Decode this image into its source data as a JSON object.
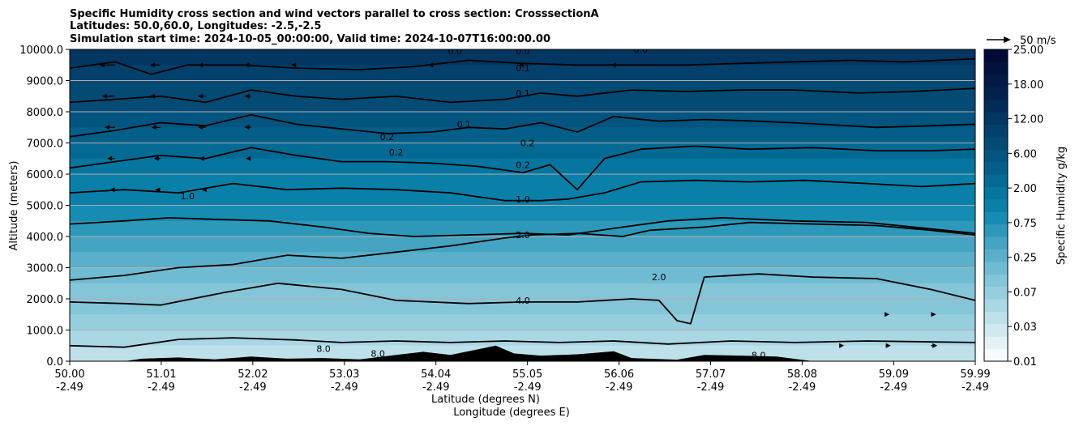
{
  "chart_data": {
    "type": "contourf",
    "title_lines": [
      "Specific Humidity cross section and wind vectors parallel to cross section: CrosssectionA",
      "Latitudes: 50.0,60.0, Longitudes: -2.5,-2.5",
      "Simulation start time: 2024-10-05_00:00:00, Valid time: 2024-10-07T16:00:00.00"
    ],
    "ylabel": "Altitude (meters)",
    "xlabel_lines": [
      "Latitude (degrees N)",
      "Longitude (degrees E)"
    ],
    "ylim": [
      0,
      10000
    ],
    "y_ticks": [
      0,
      1000,
      2000,
      3000,
      4000,
      5000,
      6000,
      7000,
      8000,
      9000,
      10000
    ],
    "y_tick_labels": [
      "0.0",
      "1000.0",
      "2000.0",
      "3000.0",
      "4000.0",
      "5000.0",
      "6000.0",
      "7000.0",
      "8000.0",
      "9000.0",
      "10000.0"
    ],
    "xlim": [
      50.0,
      59.99
    ],
    "x_ticks": [
      50.0,
      51.01,
      52.02,
      53.03,
      54.04,
      55.05,
      56.06,
      57.07,
      58.08,
      59.09,
      59.99
    ],
    "x_tick_labels": [
      [
        "50.00",
        "-2.49"
      ],
      [
        "51.01",
        "-2.49"
      ],
      [
        "52.02",
        "-2.49"
      ],
      [
        "53.03",
        "-2.49"
      ],
      [
        "54.04",
        "-2.49"
      ],
      [
        "55.05",
        "-2.49"
      ],
      [
        "56.06",
        "-2.49"
      ],
      [
        "57.07",
        "-2.49"
      ],
      [
        "58.08",
        "-2.49"
      ],
      [
        "59.09",
        "-2.49"
      ],
      [
        "59.99",
        "-2.49"
      ]
    ],
    "grid": "horizontal",
    "colorbar": {
      "label": "Specific Humidity g/kg",
      "tick_labels": [
        "0.01",
        "0.03",
        "0.07",
        "0.25",
        "0.75",
        "2.00",
        "6.00",
        "12.00",
        "18.00",
        "25.00"
      ],
      "colors": [
        "#f7fbfd",
        "#e4f2f6",
        "#d0e9f0",
        "#bde0ea",
        "#aad7e4",
        "#97cede",
        "#84c5d8",
        "#6fbbd2",
        "#5ab0ca",
        "#44a4c2",
        "#2d98ba",
        "#168cb2",
        "#0a80a9",
        "#06759f",
        "#046a94",
        "#035f89",
        "#03547f",
        "#034a75",
        "#03406b",
        "#033661",
        "#022c57",
        "#02224d",
        "#021a45",
        "#02123d",
        "#020b36"
      ]
    },
    "contour_levels": [
      "0.0",
      "0.1",
      "0.2",
      "1.0",
      "2.0",
      "4.0",
      "8.0"
    ],
    "contours": [
      {
        "level": "8.0",
        "points": [
          [
            50.0,
            500
          ],
          [
            50.6,
            450
          ],
          [
            51.2,
            700
          ],
          [
            51.8,
            750
          ],
          [
            52.5,
            680
          ],
          [
            53.0,
            600
          ],
          [
            53.6,
            650
          ],
          [
            54.2,
            600
          ],
          [
            54.8,
            650
          ],
          [
            55.4,
            600
          ],
          [
            56.0,
            650
          ],
          [
            56.6,
            550
          ],
          [
            57.3,
            650
          ],
          [
            58.0,
            600
          ],
          [
            58.8,
            650
          ],
          [
            59.99,
            600
          ]
        ]
      },
      {
        "level": "4.0",
        "points": [
          [
            50.0,
            1900
          ],
          [
            50.6,
            1850
          ],
          [
            51.0,
            1800
          ],
          [
            51.7,
            2200
          ],
          [
            52.3,
            2500
          ],
          [
            53.0,
            2300
          ],
          [
            53.6,
            1950
          ],
          [
            54.4,
            1850
          ],
          [
            55.0,
            1900
          ],
          [
            55.6,
            1900
          ],
          [
            56.2,
            2000
          ],
          [
            56.5,
            1950
          ],
          [
            56.7,
            1300
          ],
          [
            56.85,
            1200
          ],
          [
            57.0,
            2700
          ],
          [
            57.6,
            2800
          ],
          [
            58.2,
            2700
          ],
          [
            58.9,
            2650
          ],
          [
            59.5,
            2300
          ],
          [
            59.99,
            1950
          ]
        ]
      },
      {
        "level": "2.0",
        "points": [
          [
            50.0,
            2600
          ],
          [
            50.6,
            2750
          ],
          [
            51.2,
            3000
          ],
          [
            51.8,
            3100
          ],
          [
            52.4,
            3400
          ],
          [
            53.0,
            3300
          ],
          [
            53.6,
            3500
          ],
          [
            54.2,
            3700
          ],
          [
            54.8,
            3950
          ],
          [
            55.1,
            4050
          ],
          [
            55.6,
            4100
          ],
          [
            56.1,
            4000
          ],
          [
            56.4,
            4200
          ],
          [
            57.0,
            4300
          ],
          [
            57.5,
            4450
          ],
          [
            58.2,
            4400
          ],
          [
            58.9,
            4350
          ],
          [
            59.5,
            4200
          ],
          [
            59.99,
            4050
          ]
        ]
      },
      {
        "level": "2.0b",
        "points": [
          [
            50.0,
            4400
          ],
          [
            50.6,
            4500
          ],
          [
            51.1,
            4600
          ],
          [
            51.6,
            4550
          ],
          [
            52.2,
            4500
          ],
          [
            52.8,
            4300
          ],
          [
            53.3,
            4100
          ],
          [
            53.8,
            4000
          ],
          [
            54.4,
            4050
          ],
          [
            55.0,
            4100
          ],
          [
            55.5,
            4050
          ],
          [
            56.1,
            4300
          ],
          [
            56.6,
            4500
          ],
          [
            57.2,
            4600
          ],
          [
            58.0,
            4500
          ],
          [
            58.8,
            4450
          ],
          [
            59.99,
            4100
          ]
        ]
      },
      {
        "level": "1.0",
        "points": [
          [
            50.0,
            5400
          ],
          [
            50.6,
            5500
          ],
          [
            51.2,
            5400
          ],
          [
            51.8,
            5700
          ],
          [
            52.4,
            5500
          ],
          [
            53.0,
            5550
          ],
          [
            53.6,
            5500
          ],
          [
            54.2,
            5400
          ],
          [
            54.8,
            5150
          ],
          [
            55.2,
            5150
          ],
          [
            55.5,
            5200
          ],
          [
            55.9,
            5400
          ],
          [
            56.3,
            5750
          ],
          [
            56.9,
            5800
          ],
          [
            57.5,
            5750
          ],
          [
            58.1,
            5800
          ],
          [
            58.8,
            5700
          ],
          [
            59.4,
            5600
          ],
          [
            59.99,
            5700
          ]
        ]
      },
      {
        "level": "0.2",
        "points": [
          [
            50.0,
            6200
          ],
          [
            50.5,
            6400
          ],
          [
            51.0,
            6600
          ],
          [
            51.5,
            6500
          ],
          [
            52.0,
            6850
          ],
          [
            52.5,
            6600
          ],
          [
            53.0,
            6400
          ],
          [
            53.5,
            6400
          ],
          [
            54.0,
            6350
          ],
          [
            54.5,
            6250
          ],
          [
            55.0,
            6050
          ],
          [
            55.3,
            6300
          ],
          [
            55.6,
            5500
          ],
          [
            55.9,
            6500
          ],
          [
            56.3,
            6800
          ],
          [
            56.9,
            6900
          ],
          [
            57.5,
            6800
          ],
          [
            58.2,
            6850
          ],
          [
            58.9,
            6750
          ],
          [
            59.5,
            6750
          ],
          [
            59.99,
            6800
          ]
        ]
      },
      {
        "level": "0.2b",
        "points": [
          [
            50.0,
            7200
          ],
          [
            50.5,
            7400
          ],
          [
            51.0,
            7650
          ],
          [
            51.5,
            7550
          ],
          [
            52.0,
            7900
          ],
          [
            52.5,
            7600
          ],
          [
            53.0,
            7450
          ],
          [
            53.5,
            7300
          ],
          [
            54.0,
            7350
          ],
          [
            54.4,
            7500
          ],
          [
            54.8,
            7450
          ],
          [
            55.2,
            7650
          ],
          [
            55.6,
            7350
          ],
          [
            56.0,
            7850
          ],
          [
            56.5,
            7700
          ],
          [
            57.0,
            7750
          ],
          [
            57.6,
            7700
          ],
          [
            58.3,
            7600
          ],
          [
            58.9,
            7500
          ],
          [
            59.5,
            7550
          ],
          [
            59.99,
            7600
          ]
        ]
      },
      {
        "level": "0.1",
        "points": [
          [
            50.0,
            8300
          ],
          [
            50.5,
            8400
          ],
          [
            51.0,
            8500
          ],
          [
            51.5,
            8300
          ],
          [
            52.0,
            8700
          ],
          [
            52.5,
            8500
          ],
          [
            53.0,
            8400
          ],
          [
            53.6,
            8500
          ],
          [
            54.2,
            8300
          ],
          [
            54.8,
            8400
          ],
          [
            55.2,
            8600
          ],
          [
            55.6,
            8500
          ],
          [
            56.2,
            8700
          ],
          [
            56.8,
            8650
          ],
          [
            57.4,
            8700
          ],
          [
            58.0,
            8700
          ],
          [
            58.7,
            8600
          ],
          [
            59.3,
            8650
          ],
          [
            59.99,
            8750
          ]
        ]
      },
      {
        "level": "0.0",
        "points": [
          [
            50.0,
            9400
          ],
          [
            50.5,
            9600
          ],
          [
            50.9,
            9200
          ],
          [
            51.3,
            9500
          ],
          [
            51.9,
            9500
          ],
          [
            52.5,
            9400
          ],
          [
            53.2,
            9350
          ],
          [
            53.8,
            9450
          ],
          [
            54.4,
            9650
          ],
          [
            55.0,
            9550
          ],
          [
            55.6,
            9500
          ],
          [
            56.2,
            9500
          ],
          [
            56.8,
            9500
          ],
          [
            57.4,
            9550
          ],
          [
            58.0,
            9600
          ],
          [
            58.6,
            9650
          ],
          [
            59.2,
            9600
          ],
          [
            59.99,
            9700
          ]
        ]
      }
    ],
    "contour_labels": [
      {
        "text": "0.0",
        "x": 54.25,
        "y": 9950
      },
      {
        "text": "0.0",
        "x": 55.0,
        "y": 9950
      },
      {
        "text": "0.0",
        "x": 56.3,
        "y": 10000
      },
      {
        "text": "0.1",
        "x": 55.0,
        "y": 9400
      },
      {
        "text": "0.1",
        "x": 55.0,
        "y": 8600
      },
      {
        "text": "0.1",
        "x": 54.35,
        "y": 7600
      },
      {
        "text": "0.2",
        "x": 53.5,
        "y": 7200
      },
      {
        "text": "0.2",
        "x": 53.6,
        "y": 6700
      },
      {
        "text": "0.2",
        "x": 55.0,
        "y": 6300
      },
      {
        "text": "0.2",
        "x": 55.05,
        "y": 7000
      },
      {
        "text": "1.0",
        "x": 51.3,
        "y": 5300
      },
      {
        "text": "1.0",
        "x": 55.0,
        "y": 5200
      },
      {
        "text": "2.0",
        "x": 55.0,
        "y": 4050
      },
      {
        "text": "4.0",
        "x": 55.0,
        "y": 1950
      },
      {
        "text": "2.0",
        "x": 56.5,
        "y": 2700
      },
      {
        "text": "8.0",
        "x": 52.8,
        "y": 400
      },
      {
        "text": "8.0",
        "x": 53.4,
        "y": 250
      },
      {
        "text": "8.0",
        "x": 57.6,
        "y": 200
      }
    ],
    "terrain": [
      [
        50.0,
        0
      ],
      [
        50.6,
        0
      ],
      [
        50.8,
        80
      ],
      [
        51.2,
        120
      ],
      [
        51.6,
        60
      ],
      [
        52.0,
        150
      ],
      [
        52.4,
        80
      ],
      [
        52.8,
        100
      ],
      [
        53.2,
        60
      ],
      [
        53.6,
        200
      ],
      [
        53.9,
        300
      ],
      [
        54.2,
        200
      ],
      [
        54.5,
        380
      ],
      [
        54.7,
        500
      ],
      [
        54.9,
        250
      ],
      [
        55.2,
        180
      ],
      [
        55.6,
        220
      ],
      [
        56.0,
        320
      ],
      [
        56.2,
        100
      ],
      [
        56.7,
        50
      ],
      [
        57.0,
        200
      ],
      [
        57.4,
        180
      ],
      [
        57.8,
        150
      ],
      [
        58.2,
        0
      ],
      [
        59.99,
        0
      ]
    ],
    "wind_reference": {
      "label": "50 m/s"
    },
    "wind_vectors": [
      {
        "x": 50.0,
        "y": 9500,
        "u": -5
      },
      {
        "x": 50.5,
        "y": 9500,
        "u": -12
      },
      {
        "x": 51.0,
        "y": 9500,
        "u": -8
      },
      {
        "x": 51.5,
        "y": 9500,
        "u": -6
      },
      {
        "x": 52.0,
        "y": 9500,
        "u": -5
      },
      {
        "x": 52.5,
        "y": 9500,
        "u": -4
      },
      {
        "x": 50.0,
        "y": 8500,
        "u": -5
      },
      {
        "x": 50.5,
        "y": 8500,
        "u": -10
      },
      {
        "x": 51.0,
        "y": 8500,
        "u": -8
      },
      {
        "x": 51.5,
        "y": 8500,
        "u": -6
      },
      {
        "x": 52.0,
        "y": 8500,
        "u": -5
      },
      {
        "x": 50.5,
        "y": 7500,
        "u": -8
      },
      {
        "x": 51.0,
        "y": 7500,
        "u": -7
      },
      {
        "x": 51.5,
        "y": 7500,
        "u": -6
      },
      {
        "x": 52.0,
        "y": 7500,
        "u": -5
      },
      {
        "x": 50.5,
        "y": 6500,
        "u": -6
      },
      {
        "x": 51.0,
        "y": 6500,
        "u": -5
      },
      {
        "x": 51.5,
        "y": 6500,
        "u": -5
      },
      {
        "x": 52.0,
        "y": 6500,
        "u": -4
      },
      {
        "x": 50.5,
        "y": 5500,
        "u": -4
      },
      {
        "x": 51.0,
        "y": 5500,
        "u": -4
      },
      {
        "x": 51.5,
        "y": 5500,
        "u": -3
      },
      {
        "x": 54.0,
        "y": 9500,
        "u": -3
      },
      {
        "x": 55.0,
        "y": 9500,
        "u": -3
      },
      {
        "x": 56.0,
        "y": 9500,
        "u": -2
      },
      {
        "x": 58.5,
        "y": 500,
        "u": 3
      },
      {
        "x": 59.0,
        "y": 500,
        "u": 4
      },
      {
        "x": 59.5,
        "y": 500,
        "u": 5
      },
      {
        "x": 59.0,
        "y": 1500,
        "u": 3
      },
      {
        "x": 59.5,
        "y": 1500,
        "u": 4
      }
    ]
  }
}
